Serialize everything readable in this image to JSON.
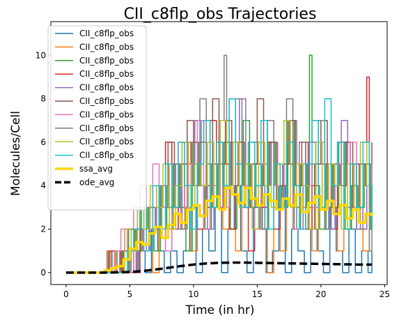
{
  "chart_data": {
    "type": "line",
    "title": "CII_c8flp_obs Trajectories",
    "xlabel": "Time (in hr)",
    "ylabel": "Molecules/Cell",
    "xlim": [
      -1.2,
      25.2
    ],
    "ylim": [
      -0.55,
      11.55
    ],
    "xticks": [
      0,
      5,
      10,
      15,
      20,
      25
    ],
    "yticks": [
      0,
      2,
      4,
      6,
      8,
      10
    ],
    "grid": false,
    "legend_position": "top-left",
    "series": [
      {
        "name": "CII_c8flp_obs",
        "color": "#1f77b4",
        "x": [
          0,
          3,
          3.3,
          3.6,
          4,
          4.4,
          4.8,
          5.2,
          5.7,
          6.2,
          6.7,
          7.2,
          7.7,
          8.2,
          8.7,
          9.2,
          9.7,
          10.2,
          10.7,
          11.2,
          11.7,
          12.2,
          12.7,
          13.2,
          13.7,
          14.2,
          14.7,
          15.2,
          15.7,
          16.2,
          16.7,
          17.2,
          17.7,
          18.2,
          18.7,
          19.2,
          19.7,
          20.2,
          20.7,
          21.2,
          21.7,
          22.2,
          22.7,
          23.2,
          23.7,
          24
        ],
        "y": [
          0,
          0,
          1,
          0,
          0,
          1,
          0,
          0,
          1,
          0,
          2,
          1,
          0,
          1,
          0,
          1,
          3,
          0,
          2,
          1,
          3,
          0,
          2,
          4,
          1,
          0,
          3,
          2,
          0,
          1,
          4,
          0,
          2,
          1,
          0,
          2,
          1,
          0,
          3,
          1,
          0,
          2,
          0,
          1,
          0,
          1
        ]
      },
      {
        "name": "CII_c8flp_obs",
        "color": "#ff7f0e",
        "x": [
          0,
          3.2,
          3.5,
          3.9,
          4.3,
          4.8,
          5.3,
          5.8,
          6.3,
          6.8,
          7.3,
          7.8,
          8.3,
          8.8,
          9.3,
          9.8,
          10.3,
          10.8,
          11.3,
          11.8,
          12.3,
          12.8,
          13.3,
          13.8,
          14.3,
          14.8,
          15.3,
          15.8,
          16.3,
          16.8,
          17.3,
          17.8,
          18.3,
          18.8,
          19.3,
          19.8,
          20.3,
          20.8,
          21.3,
          21.8,
          22.3,
          22.8,
          23.3,
          23.8,
          24
        ],
        "y": [
          0,
          1,
          0,
          1,
          0,
          2,
          1,
          3,
          2,
          0,
          4,
          1,
          3,
          2,
          5,
          1,
          4,
          2,
          3,
          6,
          2,
          4,
          1,
          3,
          5,
          2,
          4,
          0,
          3,
          1,
          5,
          2,
          3,
          4,
          1,
          3,
          2,
          5,
          1,
          2,
          4,
          3,
          1,
          2,
          3
        ]
      },
      {
        "name": "CII_c8flp_obs",
        "color": "#2ca02c",
        "x": [
          0,
          4,
          4.4,
          4.9,
          5.4,
          5.9,
          6.4,
          6.9,
          7.4,
          7.9,
          8.4,
          8.9,
          9.4,
          9.9,
          10.4,
          10.9,
          11.4,
          11.9,
          12.4,
          12.9,
          13.4,
          13.9,
          14.4,
          14.9,
          15.4,
          15.9,
          16.4,
          16.9,
          17.4,
          17.9,
          18.4,
          18.9,
          19.1,
          19.3,
          19.6,
          19.9,
          20.4,
          20.9,
          21.4,
          21.9,
          22.4,
          22.9,
          23.4,
          23.9,
          24
        ],
        "y": [
          0,
          1,
          0,
          2,
          1,
          3,
          2,
          1,
          4,
          2,
          5,
          3,
          1,
          6,
          4,
          2,
          5,
          3,
          6,
          2,
          4,
          7,
          3,
          5,
          2,
          6,
          4,
          3,
          7,
          2,
          5,
          3,
          10,
          6,
          4,
          2,
          5,
          3,
          6,
          2,
          4,
          3,
          5,
          2,
          4
        ]
      },
      {
        "name": "CII_c8flp_obs",
        "color": "#d62728",
        "x": [
          0,
          3.4,
          3.8,
          4.3,
          4.8,
          5.3,
          5.8,
          6.3,
          6.8,
          7.3,
          7.8,
          8.3,
          8.8,
          9.3,
          9.8,
          10.3,
          10.8,
          11.3,
          11.8,
          12.3,
          12.8,
          13.3,
          13.8,
          14.3,
          14.8,
          15.3,
          15.8,
          16.3,
          16.8,
          17.3,
          17.8,
          18.3,
          18.8,
          19.3,
          19.8,
          20.3,
          20.8,
          21.3,
          21.8,
          22.3,
          22.8,
          23.3,
          23.6,
          23.8,
          24
        ],
        "y": [
          0,
          1,
          0,
          1,
          2,
          0,
          3,
          1,
          2,
          4,
          6,
          2,
          5,
          3,
          6,
          2,
          4,
          7,
          3,
          5,
          2,
          6,
          4,
          1,
          5,
          3,
          6,
          2,
          4,
          5,
          3,
          6,
          2,
          4,
          5,
          3,
          2,
          4,
          6,
          3,
          5,
          2,
          9,
          4,
          2
        ]
      },
      {
        "name": "CII_c8flp_obs",
        "color": "#9467bd",
        "x": [
          0,
          4.2,
          4.6,
          5.1,
          5.6,
          6.1,
          6.6,
          7.1,
          7.6,
          8.1,
          8.6,
          9.1,
          9.6,
          10.1,
          10.6,
          11.1,
          11.6,
          12.1,
          12.6,
          13.1,
          13.6,
          14.1,
          14.6,
          15.1,
          15.6,
          16.1,
          16.6,
          17.1,
          17.6,
          18.1,
          18.6,
          19.1,
          19.6,
          20.1,
          20.6,
          21.1,
          21.6,
          22.1,
          22.6,
          23.1,
          23.6,
          24
        ],
        "y": [
          0,
          1,
          2,
          0,
          3,
          1,
          2,
          4,
          3,
          5,
          2,
          6,
          3,
          7,
          4,
          2,
          5,
          3,
          6,
          4,
          8,
          3,
          5,
          2,
          4,
          6,
          3,
          5,
          7,
          2,
          4,
          6,
          3,
          5,
          2,
          4,
          7,
          3,
          5,
          2,
          4,
          3
        ]
      },
      {
        "name": "CII_c8flp_obs",
        "color": "#8c564b",
        "x": [
          0,
          4.5,
          5,
          5.5,
          6,
          6.5,
          7,
          7.5,
          8,
          8.5,
          9,
          9.5,
          10,
          10.5,
          11,
          11.5,
          12,
          12.5,
          13,
          13.5,
          14,
          14.5,
          15,
          15.5,
          16,
          16.5,
          17,
          17.5,
          18,
          18.5,
          19,
          19.5,
          20,
          20.5,
          21,
          21.5,
          22,
          22.5,
          23,
          23.5,
          24
        ],
        "y": [
          0,
          1,
          0,
          2,
          1,
          3,
          2,
          4,
          6,
          3,
          5,
          7,
          4,
          6,
          3,
          8,
          5,
          7,
          4,
          6,
          3,
          5,
          8,
          4,
          6,
          3,
          5,
          7,
          4,
          6,
          2,
          5,
          7,
          3,
          5,
          4,
          6,
          3,
          5,
          4,
          6
        ]
      },
      {
        "name": "CII_c8flp_obs",
        "color": "#e377c2",
        "x": [
          0,
          3.8,
          4.3,
          4.8,
          5.3,
          5.8,
          6.3,
          6.8,
          7.3,
          7.8,
          8.3,
          8.8,
          9.3,
          9.8,
          10.3,
          10.8,
          11.3,
          11.8,
          12.3,
          12.8,
          13.3,
          13.8,
          14.3,
          14.8,
          15.3,
          15.8,
          16.3,
          16.8,
          17.3,
          17.8,
          18.3,
          18.8,
          19.3,
          19.8,
          20.3,
          20.8,
          21.3,
          21.8,
          22.3,
          22.8,
          23.3,
          23.8,
          24
        ],
        "y": [
          0,
          1,
          2,
          0,
          3,
          4,
          2,
          5,
          3,
          1,
          4,
          6,
          3,
          5,
          7,
          2,
          4,
          6,
          3,
          8,
          5,
          4,
          6,
          2,
          5,
          7,
          4,
          3,
          6,
          2,
          5,
          4,
          3,
          6,
          2,
          4,
          5,
          3,
          6,
          2,
          4,
          3,
          5
        ]
      },
      {
        "name": "CII_c8flp_obs",
        "color": "#7f7f7f",
        "x": [
          0,
          5,
          5.5,
          6,
          6.5,
          7,
          7.5,
          8,
          8.5,
          9,
          9.5,
          10,
          10.5,
          11,
          11.5,
          12,
          12.4,
          12.6,
          12.9,
          13.3,
          13.8,
          14.3,
          14.8,
          15.3,
          15.8,
          16.3,
          16.8,
          17.3,
          17.8,
          18.3,
          18.8,
          19.3,
          19.8,
          20.3,
          20.8,
          21.3,
          21.8,
          22.3,
          22.8,
          23.3,
          23.8,
          24
        ],
        "y": [
          0,
          1,
          2,
          1,
          3,
          2,
          4,
          3,
          5,
          2,
          6,
          4,
          8,
          5,
          3,
          7,
          10,
          6,
          4,
          8,
          5,
          3,
          6,
          4,
          7,
          3,
          5,
          8,
          4,
          6,
          3,
          5,
          7,
          2,
          4,
          6,
          3,
          5,
          2,
          4,
          1,
          3
        ]
      },
      {
        "name": "CII_c8flp_obs",
        "color": "#bcbd22",
        "x": [
          0,
          4.6,
          5.1,
          5.6,
          6.1,
          6.6,
          7.1,
          7.6,
          8.1,
          8.6,
          9.1,
          9.6,
          10.1,
          10.6,
          11.1,
          11.6,
          12.1,
          12.6,
          13.1,
          13.6,
          14.1,
          14.6,
          15.1,
          15.6,
          16.1,
          16.6,
          17.1,
          17.6,
          18.1,
          18.6,
          19.1,
          19.6,
          20.1,
          20.6,
          21.1,
          21.6,
          22.1,
          22.6,
          23.1,
          23.6,
          24
        ],
        "y": [
          0,
          2,
          1,
          3,
          2,
          4,
          3,
          5,
          2,
          4,
          6,
          3,
          5,
          4,
          6,
          3,
          7,
          4,
          6,
          3,
          5,
          2,
          6,
          4,
          3,
          5,
          7,
          3,
          5,
          4,
          2,
          6,
          3,
          5,
          4,
          2,
          5,
          3,
          6,
          4,
          2
        ]
      },
      {
        "name": "CII_c8flp_obs",
        "color": "#17becf",
        "x": [
          0,
          4.8,
          5.3,
          5.8,
          6.3,
          6.8,
          7.3,
          7.8,
          8.3,
          8.8,
          9.3,
          9.8,
          10.3,
          10.8,
          11.3,
          11.8,
          12.3,
          12.8,
          13.3,
          13.8,
          14.3,
          14.8,
          15.3,
          15.8,
          16.3,
          16.8,
          17.3,
          17.8,
          18.3,
          18.8,
          19.3,
          19.8,
          20.3,
          20.8,
          21.3,
          21.8,
          22.3,
          22.8,
          23.3,
          23.8,
          24
        ],
        "y": [
          0,
          1,
          2,
          3,
          1,
          4,
          2,
          5,
          3,
          6,
          4,
          2,
          5,
          7,
          3,
          6,
          4,
          8,
          5,
          3,
          6,
          4,
          7,
          2,
          5,
          3,
          6,
          4,
          2,
          5,
          7,
          3,
          8,
          4,
          6,
          2,
          5,
          3,
          6,
          4,
          2
        ]
      },
      {
        "name": "ssa_avg",
        "color": "#ffd700",
        "x": [
          0,
          1,
          2,
          3,
          3.5,
          4,
          4.5,
          5,
          5.5,
          6,
          6.5,
          7,
          7.5,
          8,
          8.5,
          9,
          9.5,
          10,
          10.5,
          11,
          11.5,
          12,
          12.5,
          13,
          13.5,
          14,
          14.5,
          15,
          15.5,
          16,
          16.5,
          17,
          17.5,
          18,
          18.5,
          19,
          19.5,
          20,
          20.5,
          21,
          21.5,
          22,
          22.5,
          23,
          23.5,
          24
        ],
        "y": [
          0,
          0,
          0,
          0.1,
          0.2,
          0.3,
          0.6,
          1.1,
          1.4,
          1.3,
          1.8,
          2.1,
          1.6,
          2.2,
          2.7,
          2.3,
          2.9,
          3.1,
          2.6,
          3.3,
          3.5,
          2.9,
          3.9,
          3.6,
          3.2,
          3.9,
          3.4,
          3.1,
          3.6,
          3.3,
          2.9,
          3.4,
          3.1,
          3.6,
          2.8,
          3.2,
          3.5,
          2.9,
          3.3,
          2.7,
          3.1,
          2.5,
          2.9,
          2.3,
          2.7,
          2.6
        ]
      },
      {
        "name": "ode_avg",
        "color": "#000000",
        "x": [
          0,
          1,
          2,
          3,
          4,
          5,
          6,
          7,
          8,
          9,
          10,
          11,
          12,
          13,
          14,
          15,
          16,
          17,
          18,
          19,
          20,
          21,
          22,
          23,
          24
        ],
        "y": [
          0,
          0,
          0,
          0,
          0.01,
          0.03,
          0.07,
          0.14,
          0.22,
          0.3,
          0.37,
          0.42,
          0.45,
          0.46,
          0.46,
          0.45,
          0.44,
          0.43,
          0.42,
          0.41,
          0.4,
          0.39,
          0.38,
          0.37,
          0.37
        ]
      }
    ]
  }
}
